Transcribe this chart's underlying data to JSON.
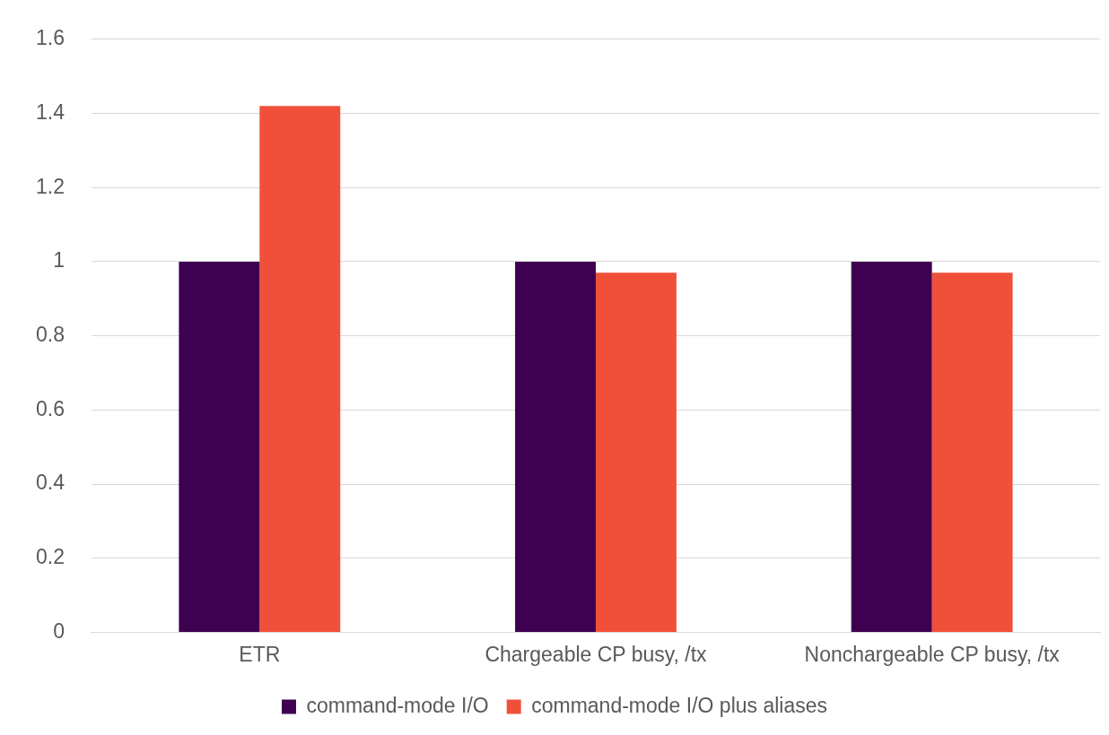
{
  "chart_data": {
    "type": "bar",
    "categories": [
      "ETR",
      "Chargeable CP busy, /tx",
      "Nonchargeable CP busy, /tx"
    ],
    "series": [
      {
        "name": "command-mode I/O",
        "color": "#3e0050",
        "values": [
          1,
          1,
          1
        ]
      },
      {
        "name": "command-mode I/O plus aliases",
        "color": "#f05039",
        "values": [
          1.42,
          0.97,
          0.97
        ]
      }
    ],
    "ylim": [
      0,
      1.6
    ],
    "yticks": [
      0,
      0.2,
      0.4,
      0.6,
      0.8,
      1,
      1.2,
      1.4,
      1.6
    ],
    "grid": "y",
    "legend": "bottom"
  }
}
